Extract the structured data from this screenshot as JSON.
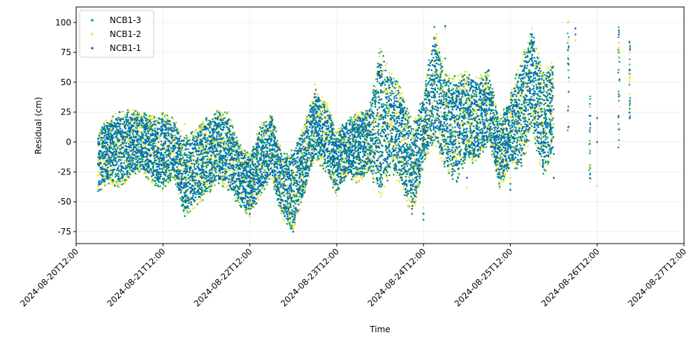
{
  "chart_data": {
    "type": "scatter",
    "xlabel": "Time",
    "ylabel": "Residual (cm)",
    "xlim": [
      "2024-08-20T12:00",
      "2024-08-27T12:00"
    ],
    "ylim": [
      -85,
      113
    ],
    "grid": true,
    "legend_placement": "top-left",
    "x_ticks": [
      "2024-08-20T12:00",
      "2024-08-21T12:00",
      "2024-08-22T12:00",
      "2024-08-23T12:00",
      "2024-08-24T12:00",
      "2024-08-25T12:00",
      "2024-08-26T12:00",
      "2024-08-27T12:00"
    ],
    "y_ticks": [
      -75,
      -50,
      -25,
      0,
      25,
      50,
      75,
      100
    ],
    "series": [
      {
        "name": "NCB1-3",
        "color": "#009e73",
        "points": [
          [
            "2024-08-20T18:30",
            -10
          ],
          [
            "2024-08-21T00:00",
            20
          ],
          [
            "2024-08-21T06:00",
            15
          ],
          [
            "2024-08-21T12:00",
            -5
          ],
          [
            "2024-08-21T18:00",
            -62
          ],
          [
            "2024-08-22T00:00",
            -20
          ],
          [
            "2024-08-22T06:00",
            10
          ],
          [
            "2024-08-22T12:00",
            -50
          ],
          [
            "2024-08-22T18:00",
            20
          ],
          [
            "2024-08-23T00:00",
            -70
          ],
          [
            "2024-08-23T06:00",
            10
          ],
          [
            "2024-08-23T12:00",
            -35
          ],
          [
            "2024-08-23T18:00",
            5
          ],
          [
            "2024-08-24T00:00",
            -30
          ],
          [
            "2024-08-24T06:00",
            20
          ],
          [
            "2024-08-24T12:00",
            -65
          ],
          [
            "2024-08-24T18:00",
            70
          ],
          [
            "2024-08-25T00:00",
            20
          ],
          [
            "2024-08-25T06:00",
            60
          ],
          [
            "2024-08-25T12:00",
            -35
          ],
          [
            "2024-08-25T18:00",
            80
          ],
          [
            "2024-08-26T00:00",
            -10
          ],
          [
            "2024-08-26T06:00",
            90
          ],
          [
            "2024-08-26T12:00",
            20
          ],
          [
            "2024-08-26T18:00",
            75
          ],
          [
            "2024-08-26T21:00",
            60
          ]
        ]
      },
      {
        "name": "NCB1-2",
        "color": "#f0e442",
        "points": [
          [
            "2024-08-20T18:30",
            5
          ],
          [
            "2024-08-21T00:00",
            -38
          ],
          [
            "2024-08-21T06:00",
            22
          ],
          [
            "2024-08-21T12:00",
            -40
          ],
          [
            "2024-08-21T18:00",
            15
          ],
          [
            "2024-08-22T00:00",
            -25
          ],
          [
            "2024-08-22T06:00",
            25
          ],
          [
            "2024-08-22T12:00",
            -62
          ],
          [
            "2024-08-22T18:00",
            10
          ],
          [
            "2024-08-23T00:00",
            -55
          ],
          [
            "2024-08-23T06:00",
            48
          ],
          [
            "2024-08-23T12:00",
            -45
          ],
          [
            "2024-08-23T18:00",
            20
          ],
          [
            "2024-08-24T00:00",
            78
          ],
          [
            "2024-08-24T06:00",
            30
          ],
          [
            "2024-08-24T12:00",
            -55
          ],
          [
            "2024-08-24T18:00",
            95
          ],
          [
            "2024-08-25T00:00",
            -38
          ],
          [
            "2024-08-25T06:00",
            55
          ],
          [
            "2024-08-25T12:00",
            -30
          ],
          [
            "2024-08-25T18:00",
            95
          ],
          [
            "2024-08-26T00:00",
            15
          ],
          [
            "2024-08-26T06:00",
            85
          ],
          [
            "2024-08-26T12:00",
            -37
          ],
          [
            "2024-08-26T18:00",
            83
          ],
          [
            "2024-08-26T21:00",
            40
          ]
        ]
      },
      {
        "name": "NCB1-1",
        "color": "#0072b2",
        "points": [
          [
            "2024-08-20T18:30",
            -40
          ],
          [
            "2024-08-21T00:00",
            25
          ],
          [
            "2024-08-21T06:00",
            -10
          ],
          [
            "2024-08-21T12:00",
            10
          ],
          [
            "2024-08-21T18:00",
            -55
          ],
          [
            "2024-08-22T00:00",
            20
          ],
          [
            "2024-08-22T06:00",
            -40
          ],
          [
            "2024-08-22T12:00",
            -60
          ],
          [
            "2024-08-22T18:00",
            20
          ],
          [
            "2024-08-23T00:00",
            -75
          ],
          [
            "2024-08-23T06:00",
            40
          ],
          [
            "2024-08-23T12:00",
            -40
          ],
          [
            "2024-08-23T18:00",
            10
          ],
          [
            "2024-08-24T00:00",
            55
          ],
          [
            "2024-08-24T06:00",
            -20
          ],
          [
            "2024-08-24T12:00",
            -60
          ],
          [
            "2024-08-24T18:00",
            97
          ],
          [
            "2024-08-25T00:00",
            -30
          ],
          [
            "2024-08-25T06:00",
            60
          ],
          [
            "2024-08-25T12:00",
            -40
          ],
          [
            "2024-08-25T18:00",
            90
          ],
          [
            "2024-08-26T00:00",
            -30
          ],
          [
            "2024-08-26T06:00",
            95
          ],
          [
            "2024-08-26T12:00",
            0
          ],
          [
            "2024-08-26T18:00",
            90
          ],
          [
            "2024-08-26T21:00",
            20
          ]
        ]
      }
    ],
    "envelope": {
      "description_source": "approximate min/max of combined series per time bin",
      "bins": [
        [
          "2024-08-20T18:00",
          -42,
          10
        ],
        [
          "2024-08-20T21:00",
          -35,
          22
        ],
        [
          "2024-08-21T00:00",
          -38,
          25
        ],
        [
          "2024-08-21T03:00",
          -30,
          28
        ],
        [
          "2024-08-21T06:00",
          -25,
          25
        ],
        [
          "2024-08-21T09:00",
          -35,
          22
        ],
        [
          "2024-08-21T12:00",
          -40,
          25
        ],
        [
          "2024-08-21T15:00",
          -30,
          20
        ],
        [
          "2024-08-21T18:00",
          -62,
          5
        ],
        [
          "2024-08-21T21:00",
          -55,
          10
        ],
        [
          "2024-08-22T00:00",
          -45,
          20
        ],
        [
          "2024-08-22T03:00",
          -35,
          27
        ],
        [
          "2024-08-22T06:00",
          -40,
          25
        ],
        [
          "2024-08-22T09:00",
          -55,
          0
        ],
        [
          "2024-08-22T12:00",
          -62,
          -10
        ],
        [
          "2024-08-22T15:00",
          -45,
          15
        ],
        [
          "2024-08-22T18:00",
          -30,
          25
        ],
        [
          "2024-08-22T21:00",
          -65,
          -10
        ],
        [
          "2024-08-23T00:00",
          -75,
          -5
        ],
        [
          "2024-08-23T03:00",
          -45,
          15
        ],
        [
          "2024-08-23T06:00",
          -15,
          45
        ],
        [
          "2024-08-23T09:00",
          -25,
          35
        ],
        [
          "2024-08-23T12:00",
          -45,
          10
        ],
        [
          "2024-08-23T15:00",
          -30,
          20
        ],
        [
          "2024-08-23T18:00",
          -35,
          25
        ],
        [
          "2024-08-23T21:00",
          -25,
          30
        ],
        [
          "2024-08-24T00:00",
          -50,
          78
        ],
        [
          "2024-08-24T03:00",
          -25,
          60
        ],
        [
          "2024-08-24T06:00",
          -40,
          45
        ],
        [
          "2024-08-24T09:00",
          -65,
          15
        ],
        [
          "2024-08-24T12:00",
          -20,
          40
        ],
        [
          "2024-08-24T15:00",
          0,
          97
        ],
        [
          "2024-08-24T18:00",
          -25,
          60
        ],
        [
          "2024-08-24T21:00",
          -35,
          55
        ],
        [
          "2024-08-25T00:00",
          -15,
          60
        ],
        [
          "2024-08-25T03:00",
          -20,
          55
        ],
        [
          "2024-08-25T06:00",
          0,
          60
        ],
        [
          "2024-08-25T09:00",
          -40,
          20
        ],
        [
          "2024-08-25T12:00",
          -20,
          40
        ],
        [
          "2024-08-25T15:00",
          -25,
          70
        ],
        [
          "2024-08-25T18:00",
          10,
          95
        ],
        [
          "2024-08-25T21:00",
          -30,
          60
        ],
        [
          "2024-08-26T00:00",
          -10,
          70
        ]
      ],
      "sparse_columns": [
        [
          "2024-08-26T04:00",
          0,
          105
        ],
        [
          "2024-08-26T10:00",
          -37,
          40
        ],
        [
          "2024-08-26T18:00",
          -5,
          97
        ],
        [
          "2024-08-26T21:00",
          18,
          85
        ]
      ]
    }
  }
}
